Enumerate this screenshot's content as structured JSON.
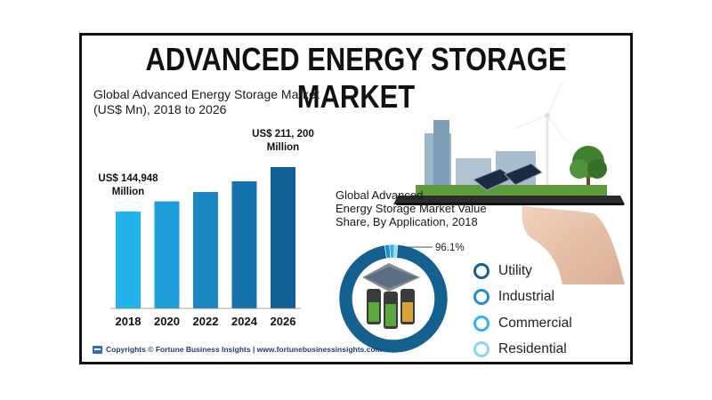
{
  "title": "ADVANCED ENERGY STORAGE MARKET",
  "subtitle_line1": "Global Advanced Energy Storage Market",
  "subtitle_line2": "(US$ Mn), 2018 to 2026",
  "pie_title_line1": "Global Advanced",
  "pie_title_line2": "Energy Storage Market Value",
  "pie_title_line3": "Share, By Application, 2018",
  "footer_text": "Copyrights © Fortune Business Insights | www.fortunebusinessinsights.com",
  "colors": {
    "bar_gradient": [
      "#23b3ea",
      "#1e9ed8",
      "#1a87c2",
      "#1672aa",
      "#125f95"
    ],
    "utility": "#14608f",
    "industrial": "#1f8fcb",
    "commercial": "#32b3e8",
    "residential": "#8ad6f2"
  },
  "chart_data": [
    {
      "type": "bar",
      "categories": [
        "2018",
        "2020",
        "2022",
        "2024",
        "2026"
      ],
      "values": [
        144948,
        160000,
        174000,
        190000,
        211200
      ],
      "ylim": [
        0,
        230000
      ],
      "annotations": [
        {
          "category": "2018",
          "line1": "US$ 144,948",
          "line2": "Million"
        },
        {
          "category": "2026",
          "line1": "US$ 211, 200",
          "line2": "Million"
        }
      ]
    },
    {
      "type": "pie",
      "labels": [
        "Utility",
        "Industrial",
        "Commercial",
        "Residential"
      ],
      "values": [
        96.1,
        1.5,
        1.4,
        1.0
      ],
      "data_labels": [
        "96.1%"
      ]
    }
  ]
}
